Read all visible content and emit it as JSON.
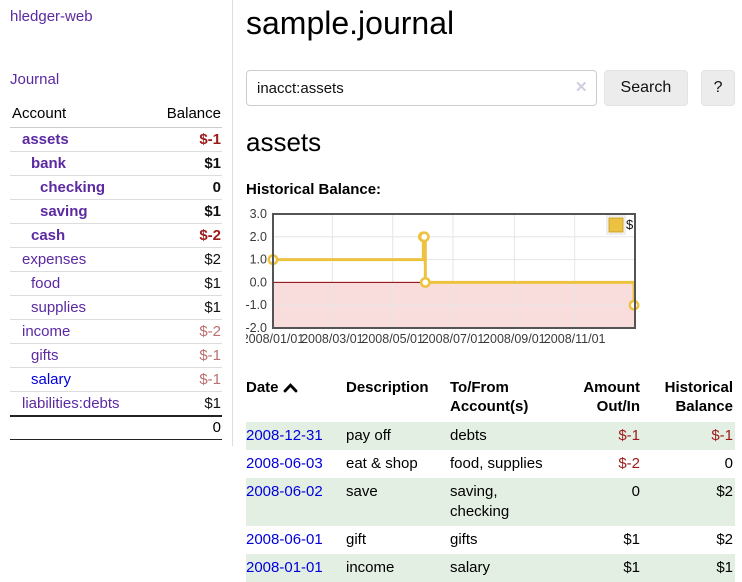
{
  "sidebar": {
    "brand": "hledger-web",
    "journal_link": "Journal",
    "accounts": {
      "col_account": "Account",
      "col_balance": "Balance",
      "rows": [
        {
          "label": "assets",
          "balance": "$-1",
          "depth": 1,
          "bold": true,
          "balance_style": "neg-strong"
        },
        {
          "label": "bank",
          "balance": "$1",
          "depth": 2,
          "bold": true,
          "balance_style": "pos"
        },
        {
          "label": "checking",
          "balance": "0",
          "depth": 3,
          "bold": true,
          "balance_style": "pos"
        },
        {
          "label": "saving",
          "balance": "$1",
          "depth": 3,
          "bold": true,
          "balance_style": "pos"
        },
        {
          "label": "cash",
          "balance": "$-2",
          "depth": 2,
          "bold": true,
          "balance_style": "neg-strong"
        },
        {
          "label": "expenses",
          "balance": "$2",
          "depth": 1,
          "bold": false,
          "balance_style": "pos"
        },
        {
          "label": "food",
          "balance": "$1",
          "depth": 2,
          "bold": false,
          "balance_style": "pos"
        },
        {
          "label": "supplies",
          "balance": "$1",
          "depth": 2,
          "bold": false,
          "balance_style": "pos"
        },
        {
          "label": "income",
          "balance": "$-2",
          "depth": 1,
          "bold": false,
          "balance_style": "neg-muted"
        },
        {
          "label": "gifts",
          "balance": "$-1",
          "depth": 2,
          "bold": false,
          "balance_style": "neg-muted"
        },
        {
          "label": "salary",
          "balance": "$-1",
          "depth": 2,
          "bold": false,
          "balance_style": "neg-muted",
          "link_style": "blue"
        },
        {
          "label": "liabilities:debts",
          "balance": "$1",
          "depth": 1,
          "bold": false,
          "balance_style": "pos"
        }
      ],
      "total": "0"
    }
  },
  "main": {
    "title": "sample.journal",
    "search": {
      "value": "inacct:assets",
      "clear_icon": "✕",
      "button_label": "Search",
      "help_label": "?"
    },
    "account_heading": "assets",
    "chart_label": "Historical Balance:",
    "register": {
      "col_date": "Date",
      "col_description": "Description",
      "col_accounts": "To/From Account(s)",
      "col_amount": "Amount Out/In",
      "col_balance": "Historical Balance",
      "rows": [
        {
          "date": "2008-12-31",
          "description": "pay off",
          "accounts": "debts",
          "amount": "$-1",
          "amount_neg": true,
          "balance": "$-1",
          "balance_neg": true
        },
        {
          "date": "2008-06-03",
          "description": "eat & shop",
          "accounts": "food, supplies",
          "amount": "$-2",
          "amount_neg": true,
          "balance": "0",
          "balance_neg": false
        },
        {
          "date": "2008-06-02",
          "description": "save",
          "accounts": "saving, checking",
          "amount": "0",
          "amount_neg": false,
          "balance": "$2",
          "balance_neg": false
        },
        {
          "date": "2008-06-01",
          "description": "gift",
          "accounts": "gifts",
          "amount": "$1",
          "amount_neg": false,
          "balance": "$2",
          "balance_neg": false
        },
        {
          "date": "2008-01-01",
          "description": "income",
          "accounts": "salary",
          "amount": "$1",
          "amount_neg": false,
          "balance": "$1",
          "balance_neg": false
        }
      ]
    }
  },
  "chart_data": {
    "type": "line",
    "style": "steps",
    "title": "Historical Balance",
    "xlabel": "",
    "ylabel": "",
    "ylim": [
      -2,
      3
    ],
    "xlim_days": [
      0,
      366
    ],
    "grid": true,
    "legend_position": "top-right",
    "series": [
      {
        "name": "$",
        "color": "#EDC240",
        "points": [
          {
            "date": "2008-01-01",
            "day": 0,
            "value": 1
          },
          {
            "date": "2008-06-01",
            "day": 152,
            "value": 2
          },
          {
            "date": "2008-06-02",
            "day": 153,
            "value": 2
          },
          {
            "date": "2008-06-03",
            "day": 154,
            "value": 0
          },
          {
            "date": "2008-12-31",
            "day": 365,
            "value": -1
          }
        ]
      }
    ],
    "x_ticks": [
      {
        "day": 0,
        "label": "2008/01/01"
      },
      {
        "day": 60,
        "label": "2008/03/01"
      },
      {
        "day": 121,
        "label": "2008/05/01"
      },
      {
        "day": 182,
        "label": "2008/07/01"
      },
      {
        "day": 244,
        "label": "2008/09/01"
      },
      {
        "day": 305,
        "label": "2008/11/01"
      }
    ],
    "y_ticks": [
      3.0,
      2.0,
      1.0,
      0.0,
      -1.0,
      -2.0
    ],
    "colors": {
      "negative_region": "#f9dcdc",
      "zero_line": "#8b0000",
      "grid_line": "#e6e6e6",
      "plot_border": "#545454",
      "axis_text": "#3a3a3a",
      "marker_fill": "#ffffff"
    }
  }
}
